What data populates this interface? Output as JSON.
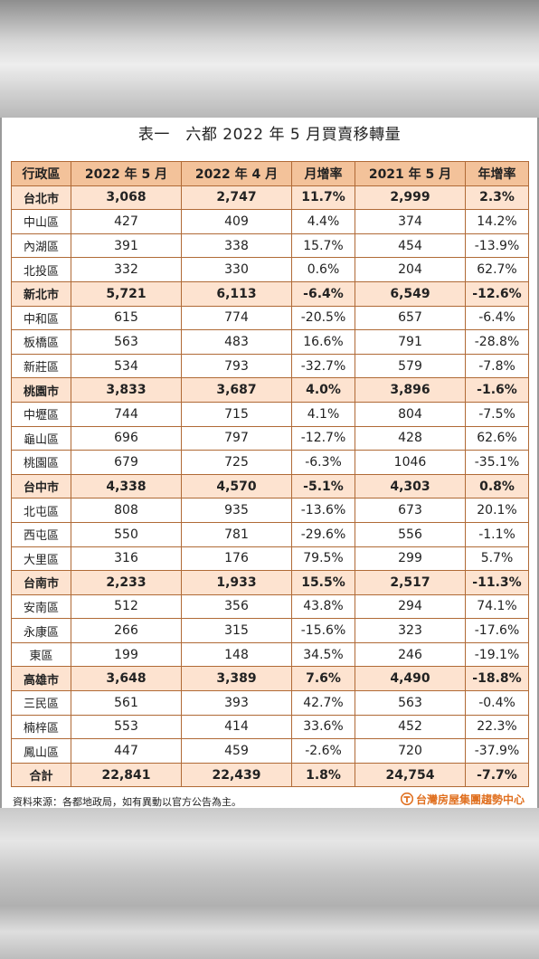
{
  "title": "表一　六都 2022 年 5 月買賣移轉量",
  "headers": [
    "行政區",
    "2022 年 5 月",
    "2022 年 4 月",
    "月增率",
    "2021 年 5 月",
    "年增率"
  ],
  "rows": [
    {
      "type": "city",
      "cells": [
        "台北市",
        "3,068",
        "2,747",
        "11.7%",
        "2,999",
        "2.3%"
      ]
    },
    {
      "type": "district",
      "cells": [
        "中山區",
        "427",
        "409",
        "4.4%",
        "374",
        "14.2%"
      ]
    },
    {
      "type": "district",
      "cells": [
        "內湖區",
        "391",
        "338",
        "15.7%",
        "454",
        "-13.9%"
      ]
    },
    {
      "type": "district",
      "cells": [
        "北投區",
        "332",
        "330",
        "0.6%",
        "204",
        "62.7%"
      ]
    },
    {
      "type": "city",
      "cells": [
        "新北市",
        "5,721",
        "6,113",
        "-6.4%",
        "6,549",
        "-12.6%"
      ]
    },
    {
      "type": "district",
      "cells": [
        "中和區",
        "615",
        "774",
        "-20.5%",
        "657",
        "-6.4%"
      ]
    },
    {
      "type": "district",
      "cells": [
        "板橋區",
        "563",
        "483",
        "16.6%",
        "791",
        "-28.8%"
      ]
    },
    {
      "type": "district",
      "cells": [
        "新莊區",
        "534",
        "793",
        "-32.7%",
        "579",
        "-7.8%"
      ]
    },
    {
      "type": "city",
      "cells": [
        "桃園市",
        "3,833",
        "3,687",
        "4.0%",
        "3,896",
        "-1.6%"
      ]
    },
    {
      "type": "district",
      "cells": [
        "中壢區",
        "744",
        "715",
        "4.1%",
        "804",
        "-7.5%"
      ]
    },
    {
      "type": "district",
      "cells": [
        "龜山區",
        "696",
        "797",
        "-12.7%",
        "428",
        "62.6%"
      ]
    },
    {
      "type": "district",
      "cells": [
        "桃園區",
        "679",
        "725",
        "-6.3%",
        "1046",
        "-35.1%"
      ]
    },
    {
      "type": "city",
      "cells": [
        "台中市",
        "4,338",
        "4,570",
        "-5.1%",
        "4,303",
        "0.8%"
      ]
    },
    {
      "type": "district",
      "cells": [
        "北屯區",
        "808",
        "935",
        "-13.6%",
        "673",
        "20.1%"
      ]
    },
    {
      "type": "district",
      "cells": [
        "西屯區",
        "550",
        "781",
        "-29.6%",
        "556",
        "-1.1%"
      ]
    },
    {
      "type": "district",
      "cells": [
        "大里區",
        "316",
        "176",
        "79.5%",
        "299",
        "5.7%"
      ]
    },
    {
      "type": "city",
      "cells": [
        "台南市",
        "2,233",
        "1,933",
        "15.5%",
        "2,517",
        "-11.3%"
      ]
    },
    {
      "type": "district",
      "cells": [
        "安南區",
        "512",
        "356",
        "43.8%",
        "294",
        "74.1%"
      ]
    },
    {
      "type": "district",
      "cells": [
        "永康區",
        "266",
        "315",
        "-15.6%",
        "323",
        "-17.6%"
      ]
    },
    {
      "type": "district",
      "cells": [
        "東區",
        "199",
        "148",
        "34.5%",
        "246",
        "-19.1%"
      ]
    },
    {
      "type": "city",
      "cells": [
        "高雄市",
        "3,648",
        "3,389",
        "7.6%",
        "4,490",
        "-18.8%"
      ]
    },
    {
      "type": "district",
      "cells": [
        "三民區",
        "561",
        "393",
        "42.7%",
        "563",
        "-0.4%"
      ]
    },
    {
      "type": "district",
      "cells": [
        "楠梓區",
        "553",
        "414",
        "33.6%",
        "452",
        "22.3%"
      ]
    },
    {
      "type": "district",
      "cells": [
        "鳳山區",
        "447",
        "459",
        "-2.6%",
        "720",
        "-37.9%"
      ]
    },
    {
      "type": "total",
      "cells": [
        "合計",
        "22,841",
        "22,439",
        "1.8%",
        "24,754",
        "-7.7%"
      ]
    }
  ],
  "footer": {
    "source": "資料來源：各都地政局，如有異動以官方公告為主。",
    "brand": "台灣房屋集團趨勢中心",
    "brand_color": "#e07020",
    "brand_icon": "house-logo-icon"
  }
}
